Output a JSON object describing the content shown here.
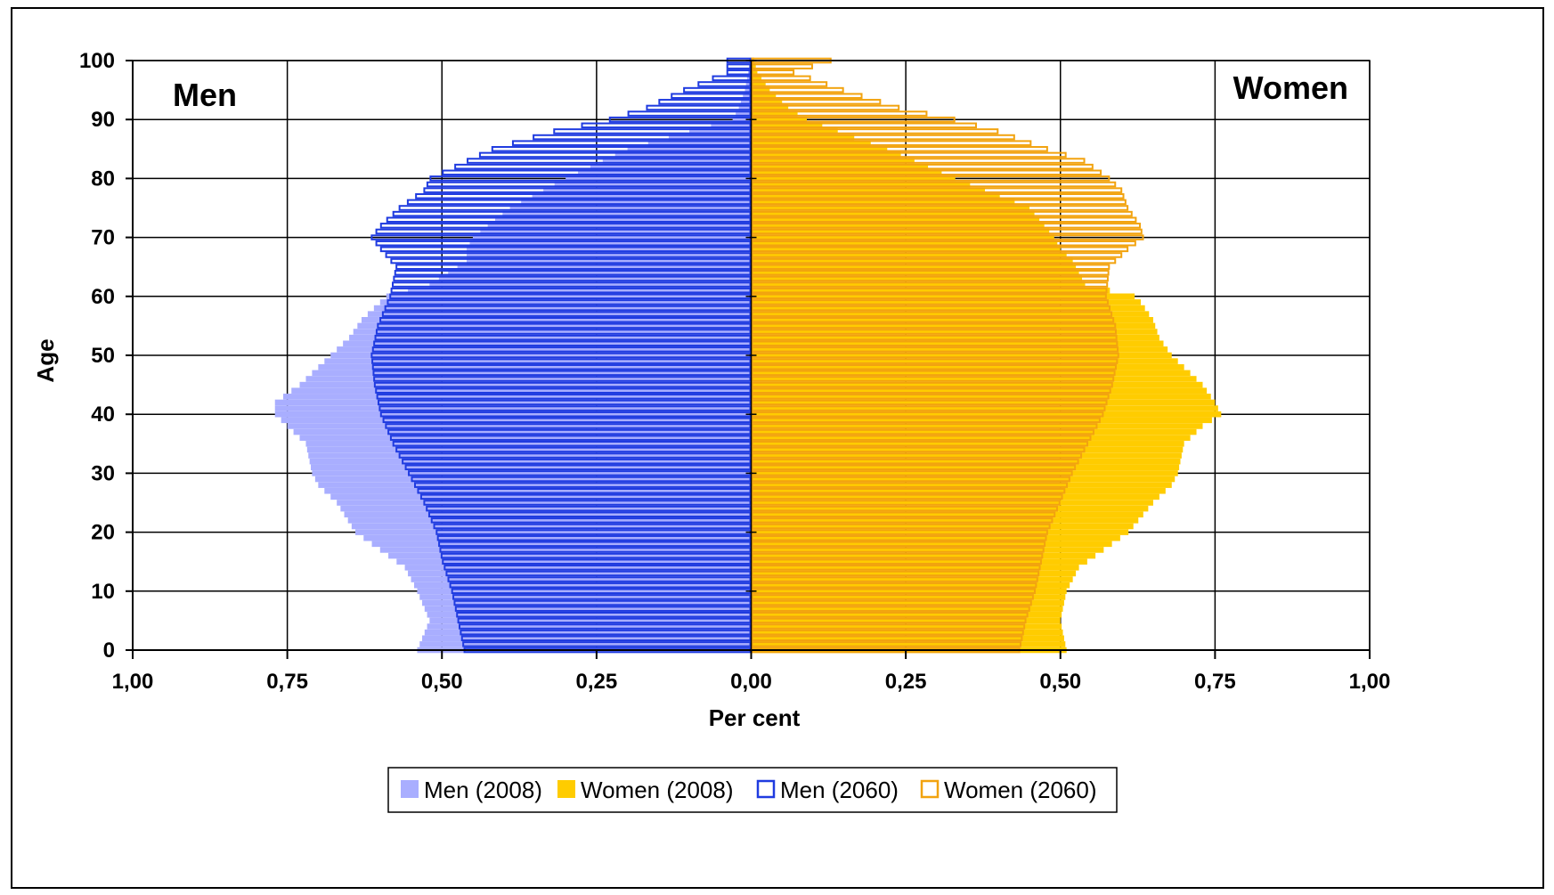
{
  "chart_data": {
    "type": "bar",
    "orientation": "horizontal-population-pyramid",
    "xlabel": "Per cent",
    "ylabel": "Age",
    "left_label": "Men",
    "right_label": "Women",
    "x_ticks": [
      "1,00",
      "0,75",
      "0,50",
      "0,25",
      "0,00",
      "0,25",
      "0,50",
      "0,75",
      "1,00"
    ],
    "y_ticks": [
      "0",
      "10",
      "20",
      "30",
      "40",
      "50",
      "60",
      "70",
      "80",
      "90",
      "100"
    ],
    "xlim": [
      -1.0,
      1.0
    ],
    "ylim": [
      0,
      100
    ],
    "grid": true,
    "legend_position": "bottom",
    "colors": {
      "men_2008": "#A9AEFF",
      "women_2008": "#FFCC00",
      "men_2060": "#1F3BE0",
      "women_2060": "#F2A30F"
    },
    "series": [
      {
        "key": "men_2008",
        "name": "Men (2008)",
        "side": "left",
        "style": "filled",
        "anchor_ages": [
          0,
          5,
          10,
          14,
          17,
          20,
          25,
          28,
          30,
          35,
          38,
          40,
          42,
          45,
          48,
          50,
          53,
          56,
          59,
          60,
          62,
          66,
          68,
          70,
          75,
          80,
          85,
          88,
          90,
          92,
          95,
          98,
          100
        ],
        "anchor_values": [
          0.54,
          0.52,
          0.54,
          0.56,
          0.6,
          0.64,
          0.67,
          0.7,
          0.71,
          0.72,
          0.75,
          0.77,
          0.77,
          0.73,
          0.7,
          0.68,
          0.65,
          0.63,
          0.6,
          0.59,
          0.52,
          0.46,
          0.46,
          0.45,
          0.39,
          0.3,
          0.2,
          0.1,
          0.03,
          0.02,
          0.01,
          0.005,
          0.002
        ]
      },
      {
        "key": "women_2008",
        "name": "Women (2008)",
        "side": "right",
        "style": "filled",
        "anchor_ages": [
          0,
          5,
          10,
          14,
          17,
          20,
          25,
          28,
          30,
          35,
          38,
          40,
          42,
          45,
          48,
          50,
          53,
          56,
          59,
          60,
          62,
          66,
          68,
          70,
          75,
          80,
          85,
          88,
          90,
          92,
          95,
          98,
          100
        ],
        "anchor_values": [
          0.51,
          0.5,
          0.51,
          0.53,
          0.57,
          0.61,
          0.65,
          0.68,
          0.69,
          0.7,
          0.73,
          0.76,
          0.75,
          0.73,
          0.7,
          0.68,
          0.66,
          0.65,
          0.63,
          0.62,
          0.54,
          0.52,
          0.5,
          0.49,
          0.45,
          0.33,
          0.22,
          0.14,
          0.09,
          0.06,
          0.03,
          0.01,
          0.005
        ]
      },
      {
        "key": "men_2060",
        "name": "Men (2060)",
        "side": "left",
        "style": "outline",
        "anchor_ages": [
          0,
          5,
          10,
          15,
          20,
          25,
          30,
          35,
          40,
          45,
          50,
          55,
          60,
          65,
          68,
          70,
          72,
          75,
          78,
          80,
          83,
          85,
          88,
          90,
          92,
          95,
          98,
          100
        ],
        "anchor_values": [
          0.465,
          0.475,
          0.485,
          0.5,
          0.51,
          0.53,
          0.555,
          0.58,
          0.6,
          0.61,
          0.615,
          0.605,
          0.585,
          0.575,
          0.6,
          0.615,
          0.6,
          0.57,
          0.53,
          0.52,
          0.46,
          0.42,
          0.32,
          0.23,
          0.17,
          0.11,
          0.04,
          0.04
        ]
      },
      {
        "key": "women_2060",
        "name": "Women (2060)",
        "side": "right",
        "style": "outline",
        "anchor_ages": [
          0,
          5,
          10,
          15,
          20,
          25,
          30,
          35,
          40,
          45,
          50,
          55,
          60,
          65,
          68,
          70,
          72,
          75,
          78,
          80,
          83,
          85,
          88,
          90,
          92,
          95,
          98,
          100
        ],
        "anchor_values": [
          0.435,
          0.445,
          0.46,
          0.47,
          0.48,
          0.5,
          0.52,
          0.545,
          0.57,
          0.585,
          0.595,
          0.59,
          0.575,
          0.58,
          0.61,
          0.635,
          0.63,
          0.61,
          0.6,
          0.58,
          0.54,
          0.48,
          0.4,
          0.33,
          0.24,
          0.15,
          0.07,
          0.13
        ]
      }
    ]
  }
}
